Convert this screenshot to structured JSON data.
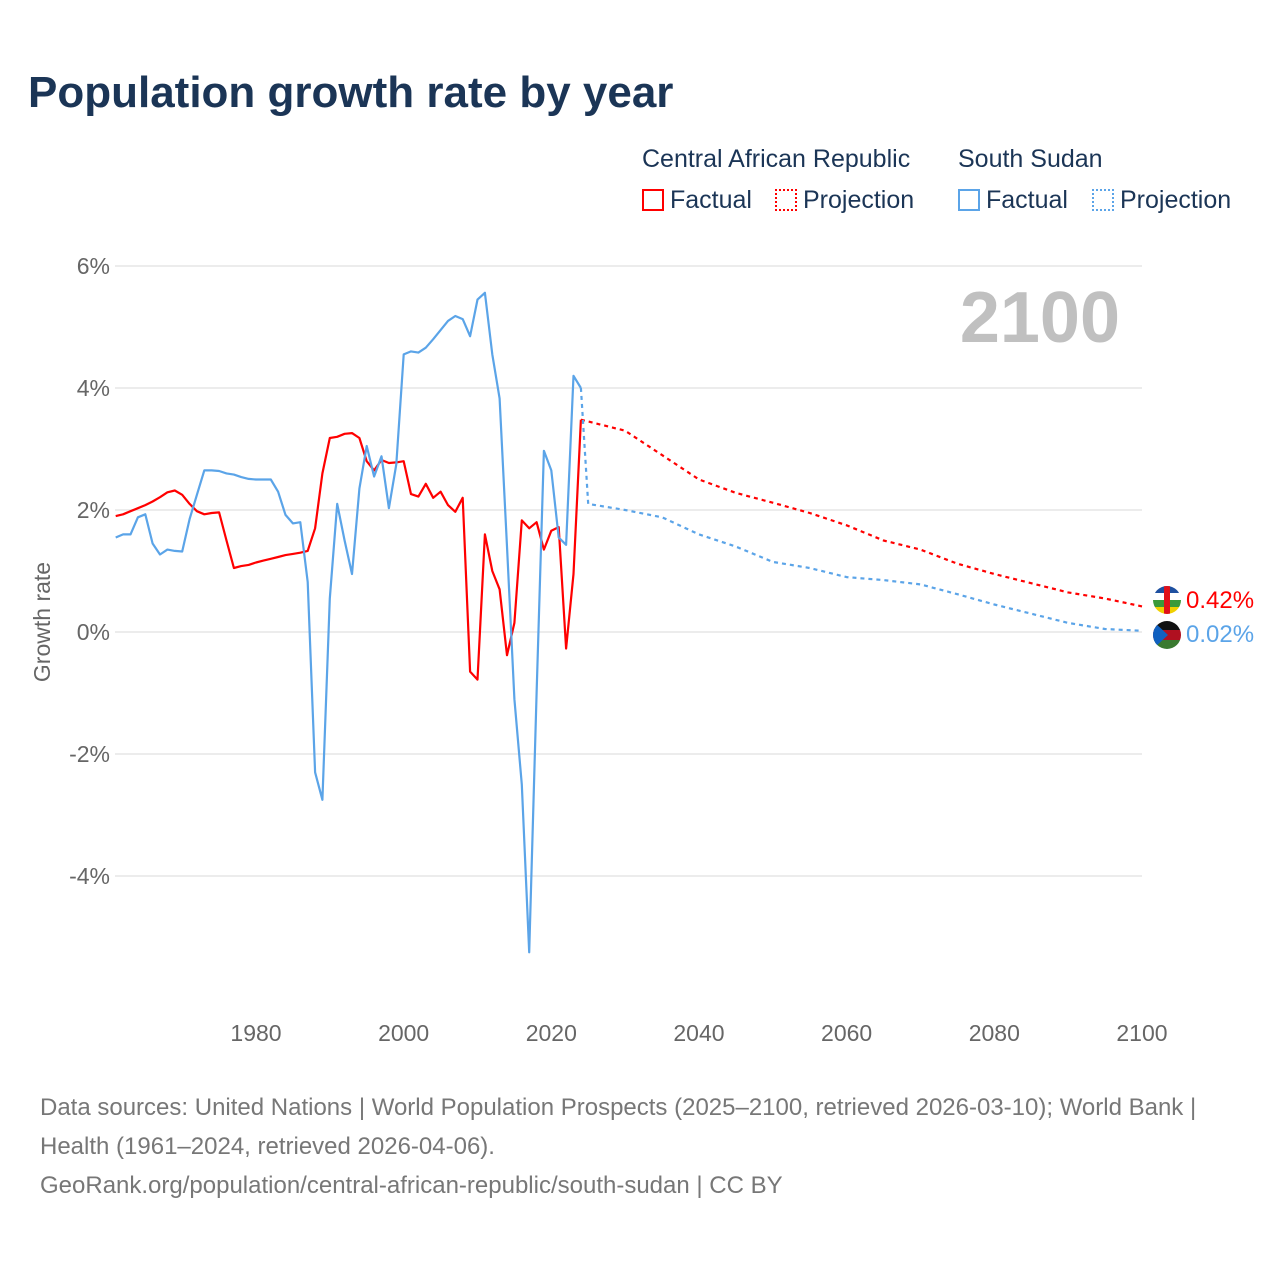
{
  "title": "Population growth rate by year",
  "legend": {
    "groups": [
      {
        "name": "Central African Republic",
        "factual": "Factual",
        "projection": "Projection",
        "color": "#ff0000"
      },
      {
        "name": "South Sudan",
        "factual": "Factual",
        "projection": "Projection",
        "color": "#5ba4e8"
      }
    ]
  },
  "year_label": "2100",
  "end_labels": [
    "0.42%",
    "0.02%"
  ],
  "source": {
    "line1": "Data sources: United Nations | World Population Prospects (2025–2100, retrieved 2026-03-10); World Bank | Health (1961–2024, retrieved 2026-04-06).",
    "line2": "GeoRank.org/population/central-african-republic/south-sudan | CC BY"
  },
  "chart_data": {
    "type": "line",
    "title": "Population growth rate by year",
    "xlabel": "",
    "ylabel": "Growth rate",
    "xlim": [
      1961,
      2100
    ],
    "ylim": [
      -6,
      6.5
    ],
    "xticks": [
      "1980",
      "2000",
      "2020",
      "2040",
      "2060",
      "2080",
      "2100"
    ],
    "yticks": [
      "6%",
      "4%",
      "2%",
      "0%",
      "-2%",
      "-4%"
    ],
    "series": [
      {
        "name": "Central African Republic — Factual",
        "x_start": 1961,
        "values": [
          1.9,
          1.93,
          1.98,
          2.03,
          2.08,
          2.14,
          2.21,
          2.29,
          2.32,
          2.25,
          2.1,
          1.98,
          1.93,
          1.95,
          1.96,
          1.5,
          1.05,
          1.08,
          1.1,
          1.14,
          1.17,
          1.2,
          1.23,
          1.26,
          1.28,
          1.3,
          1.33,
          1.7,
          2.6,
          3.18,
          3.2,
          3.25,
          3.26,
          3.18,
          2.8,
          2.65,
          2.82,
          2.77,
          2.78,
          2.8,
          2.26,
          2.22,
          2.43,
          2.2,
          2.3,
          2.08,
          1.97,
          2.2,
          -0.65,
          -0.78,
          1.6,
          1.0,
          0.7,
          -0.38,
          0.15,
          1.83,
          1.7,
          1.8,
          1.35,
          1.66,
          1.72,
          -0.27,
          0.95,
          3.48
        ]
      },
      {
        "name": "Central African Republic — Projection",
        "x": [
          2024,
          2025,
          2030,
          2035,
          2040,
          2045,
          2050,
          2055,
          2060,
          2065,
          2070,
          2075,
          2080,
          2085,
          2090,
          2095,
          2100
        ],
        "values": [
          3.48,
          3.45,
          3.3,
          2.9,
          2.5,
          2.28,
          2.12,
          1.95,
          1.75,
          1.5,
          1.35,
          1.12,
          0.95,
          0.8,
          0.65,
          0.55,
          0.42
        ]
      },
      {
        "name": "South Sudan — Factual",
        "x_start": 1961,
        "values": [
          1.55,
          1.6,
          1.6,
          1.88,
          1.93,
          1.45,
          1.27,
          1.35,
          1.33,
          1.32,
          1.85,
          2.25,
          2.65,
          2.65,
          2.64,
          2.6,
          2.58,
          2.54,
          2.51,
          2.5,
          2.5,
          2.5,
          2.3,
          1.92,
          1.78,
          1.8,
          0.82,
          -2.3,
          -2.75,
          0.55,
          2.1,
          1.5,
          0.95,
          2.35,
          3.05,
          2.55,
          2.88,
          2.03,
          2.75,
          4.55,
          4.6,
          4.58,
          4.66,
          4.8,
          4.95,
          5.1,
          5.18,
          5.13,
          4.85,
          5.45,
          5.56,
          4.55,
          3.83,
          1.4,
          -1.1,
          -2.5,
          -5.25,
          -1.0,
          2.97,
          2.65,
          1.55,
          1.43,
          4.2,
          4.0
        ]
      },
      {
        "name": "South Sudan — Projection",
        "x": [
          2024,
          2025,
          2030,
          2035,
          2040,
          2045,
          2050,
          2055,
          2060,
          2065,
          2070,
          2075,
          2080,
          2085,
          2090,
          2095,
          2100
        ],
        "values": [
          4.0,
          2.1,
          2.0,
          1.88,
          1.6,
          1.4,
          1.15,
          1.05,
          0.9,
          0.85,
          0.78,
          0.62,
          0.45,
          0.3,
          0.15,
          0.05,
          0.02
        ]
      }
    ]
  }
}
